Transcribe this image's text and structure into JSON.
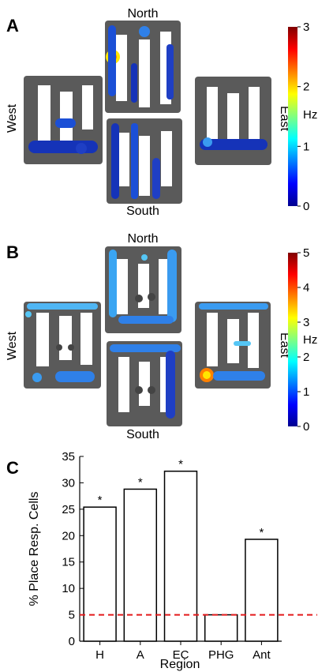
{
  "panels": {
    "a": {
      "letter": "A",
      "directions": {
        "north": "North",
        "south": "South",
        "west": "West",
        "east": "East"
      },
      "colorbar": {
        "unit": "Hz",
        "ticks": [
          "0",
          "1",
          "2",
          "3"
        ],
        "max": 3
      }
    },
    "b": {
      "letter": "B",
      "directions": {
        "north": "North",
        "south": "South",
        "west": "West",
        "east": "East"
      },
      "colorbar": {
        "unit": "Hz",
        "ticks": [
          "0",
          "1",
          "2",
          "3",
          "4",
          "5"
        ],
        "max": 5
      }
    },
    "c": {
      "letter": "C"
    }
  },
  "colors": {
    "maze_wall": "#5a5a5a",
    "bar_edge": "#000000",
    "reference_line": "#e31a1c",
    "colormap": [
      "#00008f",
      "#0000ff",
      "#0080ff",
      "#00ffff",
      "#80ff80",
      "#ffff00",
      "#ff8000",
      "#ff0000",
      "#800000"
    ]
  },
  "chart_data": {
    "type": "bar",
    "categories": [
      "H",
      "A",
      "EC",
      "PHG",
      "Ant"
    ],
    "values": [
      25.4,
      28.8,
      32.2,
      5.0,
      19.3
    ],
    "significant": [
      "*",
      "*",
      "*",
      "",
      "*"
    ],
    "reference_line": 5,
    "xlabel": "Region",
    "ylabel": "% Place Resp. Cells",
    "ylim": [
      0,
      35
    ],
    "yticks": [
      "0",
      "5",
      "10",
      "15",
      "20",
      "25",
      "30",
      "35"
    ],
    "grid": false
  }
}
